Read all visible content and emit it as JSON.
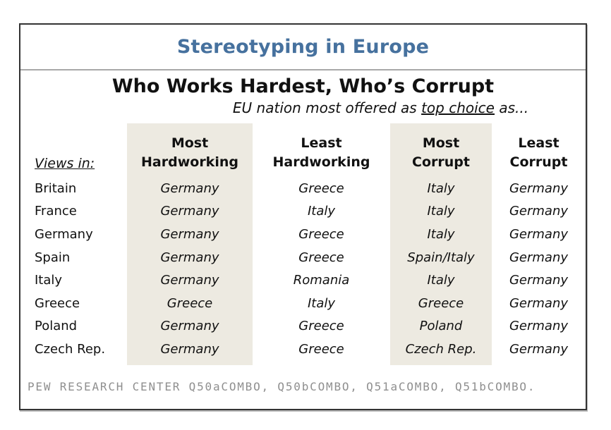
{
  "colors": {
    "title_blue": "#46719E",
    "shading": "#EDEAE1",
    "border": "#333333",
    "divider": "#A8A8A8",
    "footer_gray": "#8F8F8F",
    "text": "#111111"
  },
  "chart_data": {
    "type": "table",
    "title": "Stereotyping in Europe",
    "subtitle": "Who Works Hardest, Who’s Corrupt",
    "tagline_prefix": "EU nation most offered as ",
    "tagline_underlined": "top choice",
    "tagline_suffix": " as...",
    "corner_label": "Views in:",
    "columns": [
      {
        "label": "Most Hardworking",
        "line1": "Most",
        "line2": "Hardworking",
        "shaded": true
      },
      {
        "label": "Least Hardworking",
        "line1": "Least",
        "line2": "Hardworking",
        "shaded": false
      },
      {
        "label": "Most Corrupt",
        "line1": "Most",
        "line2": "Corrupt",
        "shaded": true
      },
      {
        "label": "Least Corrupt",
        "line1": "Least",
        "line2": "Corrupt",
        "shaded": false
      }
    ],
    "rows": [
      {
        "country": "Britain",
        "values": [
          "Germany",
          "Greece",
          "Italy",
          "Germany"
        ]
      },
      {
        "country": "France",
        "values": [
          "Germany",
          "Italy",
          "Italy",
          "Germany"
        ]
      },
      {
        "country": "Germany",
        "values": [
          "Germany",
          "Greece",
          "Italy",
          "Germany"
        ]
      },
      {
        "country": "Spain",
        "values": [
          "Germany",
          "Greece",
          "Spain/Italy",
          "Germany"
        ]
      },
      {
        "country": "Italy",
        "values": [
          "Germany",
          "Romania",
          "Italy",
          "Germany"
        ]
      },
      {
        "country": "Greece",
        "values": [
          "Greece",
          "Italy",
          "Greece",
          "Germany"
        ]
      },
      {
        "country": "Poland",
        "values": [
          "Germany",
          "Greece",
          "Poland",
          "Germany"
        ]
      },
      {
        "country": "Czech Rep.",
        "values": [
          "Germany",
          "Greece",
          "Czech Rep.",
          "Germany"
        ]
      }
    ],
    "source": "PEW RESEARCH CENTER Q50aCOMBO, Q50bCOMBO, Q51aCOMBO, Q51bCOMBO."
  }
}
